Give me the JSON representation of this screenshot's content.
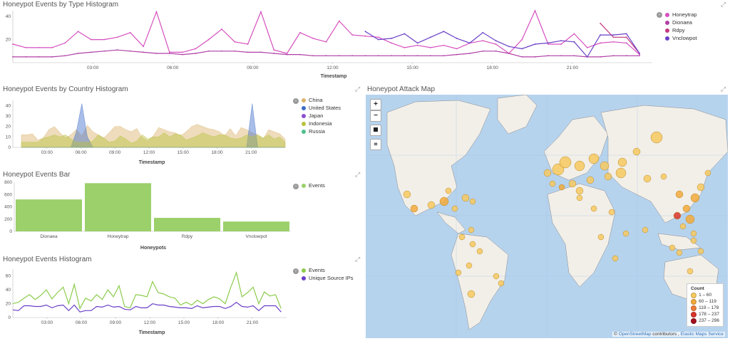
{
  "panels": {
    "type_hist": {
      "title": "Honeypot Events by Type Histogram",
      "xlabel": "Timestamp"
    },
    "country_hist": {
      "title": "Honeypot Events by Country Histogram",
      "xlabel": "Timestamp"
    },
    "bar": {
      "title": "Honeypot Events Bar",
      "xlabel": "Honeypots"
    },
    "events_hist": {
      "title": "Honeypot Events Histogram",
      "xlabel": "Timestamp"
    },
    "map": {
      "title": "Honeypot Attack Map"
    }
  },
  "time_ticks": [
    "03:00",
    "06:00",
    "09:00",
    "12:00",
    "15:00",
    "18:00",
    "21:00"
  ],
  "chart_data": [
    {
      "type": "line",
      "title": "Honeypot Events by Type Histogram",
      "xlabel": "Timestamp",
      "ylim": [
        0,
        45
      ],
      "yticks": [
        20,
        40
      ],
      "series": [
        {
          "name": "Honeytrap",
          "color": "#d64fbf",
          "values": [
            16,
            13,
            13,
            13,
            17,
            27,
            20,
            20,
            22,
            26,
            14,
            44,
            9,
            9,
            12,
            20,
            29,
            18,
            16,
            44,
            11,
            8,
            26,
            21,
            18,
            36,
            24,
            23,
            22,
            17,
            13,
            15,
            13,
            15,
            12,
            17,
            19,
            16,
            8,
            20,
            45,
            16,
            16,
            25,
            13,
            17,
            18,
            17,
            7
          ]
        },
        {
          "name": "Dionaea",
          "color": "#b03fa6",
          "values": [
            5,
            5,
            5,
            5,
            6,
            8,
            9,
            10,
            11,
            10,
            9,
            8,
            8,
            7,
            8,
            10,
            10,
            10,
            9,
            9,
            8,
            7,
            7,
            6,
            6,
            6,
            6,
            6,
            6,
            6,
            6,
            6,
            6,
            6,
            7,
            8,
            10,
            10,
            8,
            5,
            5,
            6,
            6,
            6,
            5,
            5,
            6,
            6,
            6
          ]
        },
        {
          "name": "Rdpy",
          "color": "#c2397f",
          "values": [
            null,
            null,
            null,
            null,
            null,
            null,
            null,
            null,
            null,
            null,
            null,
            null,
            null,
            null,
            null,
            null,
            null,
            null,
            null,
            null,
            null,
            null,
            null,
            null,
            null,
            null,
            null,
            null,
            null,
            null,
            null,
            null,
            null,
            null,
            null,
            null,
            null,
            null,
            null,
            null,
            null,
            null,
            null,
            null,
            null,
            34,
            22,
            22,
            8
          ]
        },
        {
          "name": "Vnclowpot",
          "color": "#6a3fc7",
          "values": [
            null,
            null,
            null,
            null,
            null,
            null,
            null,
            null,
            null,
            null,
            null,
            null,
            null,
            null,
            null,
            null,
            null,
            null,
            null,
            null,
            null,
            null,
            null,
            null,
            null,
            null,
            null,
            27,
            20,
            21,
            25,
            17,
            22,
            27,
            21,
            17,
            26,
            19,
            14,
            12,
            16,
            17,
            19,
            18,
            5,
            24,
            24,
            25,
            8
          ]
        }
      ]
    },
    {
      "type": "area",
      "title": "Honeypot Events by Country Histogram",
      "xlabel": "Timestamp",
      "ylim": [
        0,
        45
      ],
      "yticks": [
        0,
        10,
        20,
        30,
        40
      ],
      "series": [
        {
          "name": "China",
          "color": "#d9b26b",
          "values": [
            12,
            12,
            13,
            7,
            9,
            17,
            20,
            14,
            9,
            12,
            17,
            11,
            21,
            15,
            12,
            9,
            14,
            20,
            20,
            17,
            15,
            18,
            9,
            6,
            11,
            19,
            17,
            15,
            14,
            11,
            15,
            20,
            22,
            20,
            18,
            17,
            15,
            11,
            18,
            11,
            19,
            17,
            14,
            12,
            8,
            17,
            15,
            13,
            8
          ]
        },
        {
          "name": "United States",
          "color": "#3d6cc9",
          "values": [
            0,
            0,
            0,
            0,
            0,
            0,
            0,
            0,
            0,
            0,
            15,
            42,
            10,
            0,
            0,
            0,
            0,
            0,
            0,
            0,
            0,
            0,
            0,
            0,
            0,
            0,
            0,
            0,
            0,
            0,
            0,
            0,
            0,
            0,
            0,
            0,
            0,
            0,
            0,
            0,
            0,
            0,
            42,
            0,
            0,
            0,
            0,
            0,
            0
          ]
        },
        {
          "name": "Japan",
          "color": "#8a4fd3",
          "values": [
            0,
            0,
            0,
            0,
            0,
            0,
            0,
            0,
            0,
            0,
            0,
            0,
            0,
            0,
            0,
            0,
            0,
            0,
            0,
            0,
            0,
            0,
            0,
            0,
            0,
            0,
            0,
            0,
            0,
            0,
            0,
            0,
            0,
            0,
            0,
            0,
            0,
            0,
            0,
            0,
            0,
            0,
            0,
            0,
            0,
            0,
            0,
            0,
            0
          ]
        },
        {
          "name": "Indonesia",
          "color": "#b9c23b",
          "values": [
            5,
            5,
            5,
            5,
            9,
            10,
            12,
            10,
            12,
            8,
            5,
            5,
            5,
            6,
            12,
            9,
            5,
            6,
            11,
            8,
            4,
            6,
            12,
            8,
            10,
            10,
            14,
            10,
            13,
            12,
            7,
            9,
            11,
            14,
            12,
            10,
            12,
            12,
            9,
            8,
            9,
            12,
            10,
            12,
            9,
            12,
            8,
            10,
            5
          ]
        },
        {
          "name": "Russia",
          "color": "#4fc08f",
          "values": [
            0,
            0,
            0,
            0,
            0,
            0,
            0,
            0,
            0,
            0,
            0,
            0,
            0,
            0,
            0,
            0,
            0,
            0,
            0,
            0,
            0,
            0,
            0,
            0,
            0,
            0,
            0,
            0,
            0,
            0,
            0,
            0,
            0,
            0,
            0,
            0,
            0,
            0,
            0,
            0,
            0,
            0,
            0,
            0,
            0,
            0,
            0,
            0,
            0
          ]
        }
      ]
    },
    {
      "type": "bar",
      "title": "Honeypot Events Bar",
      "xlabel": "Honeypots",
      "ylim": [
        0,
        800
      ],
      "yticks": [
        0,
        200,
        400,
        600,
        800
      ],
      "categories": [
        "Dionaea",
        "Honeytrap",
        "Rdpy",
        "Vnclowpot"
      ],
      "series": [
        {
          "name": "Events",
          "color": "#9bd06a",
          "values": [
            520,
            785,
            220,
            160
          ]
        }
      ]
    },
    {
      "type": "line",
      "title": "Honeypot Events Histogram",
      "xlabel": "Timestamp",
      "ylim": [
        0,
        70
      ],
      "yticks": [
        0,
        20,
        40,
        60
      ],
      "series": [
        {
          "name": "Events",
          "color": "#8ccc4c",
          "values": [
            20,
            22,
            28,
            33,
            26,
            32,
            40,
            27,
            36,
            44,
            20,
            48,
            13,
            28,
            24,
            33,
            26,
            40,
            30,
            46,
            16,
            14,
            33,
            32,
            30,
            52,
            36,
            34,
            30,
            28,
            18,
            22,
            18,
            25,
            20,
            26,
            30,
            27,
            20,
            44,
            65,
            30,
            36,
            44,
            20,
            37,
            31,
            33,
            13
          ]
        },
        {
          "name": "Unique Source IPs",
          "color": "#6a3fc7",
          "values": [
            11,
            10,
            17,
            17,
            16,
            16,
            18,
            14,
            17,
            18,
            10,
            18,
            8,
            10,
            10,
            16,
            15,
            18,
            15,
            16,
            12,
            11,
            16,
            14,
            14,
            20,
            18,
            18,
            16,
            15,
            14,
            14,
            13,
            17,
            14,
            15,
            16,
            16,
            13,
            16,
            22,
            16,
            15,
            17,
            10,
            17,
            17,
            17,
            8
          ]
        }
      ]
    }
  ],
  "map": {
    "zoom_in": "+",
    "zoom_out": "−",
    "legend_title": "Count",
    "legend": [
      {
        "label": "1 – 60",
        "color": "#f7c960"
      },
      {
        "label": "60 – 119",
        "color": "#f2a93b"
      },
      {
        "label": "119 – 178",
        "color": "#ee7d3a"
      },
      {
        "label": "178 – 237",
        "color": "#d9362b"
      },
      {
        "label": "237 – 296",
        "color": "#a3101c"
      }
    ],
    "attribution_prefix": "©",
    "attribution_osm": "OpenStreetMap",
    "attribution_mid": "contributors ,",
    "attribution_ems": "Elastic Maps Service"
  }
}
